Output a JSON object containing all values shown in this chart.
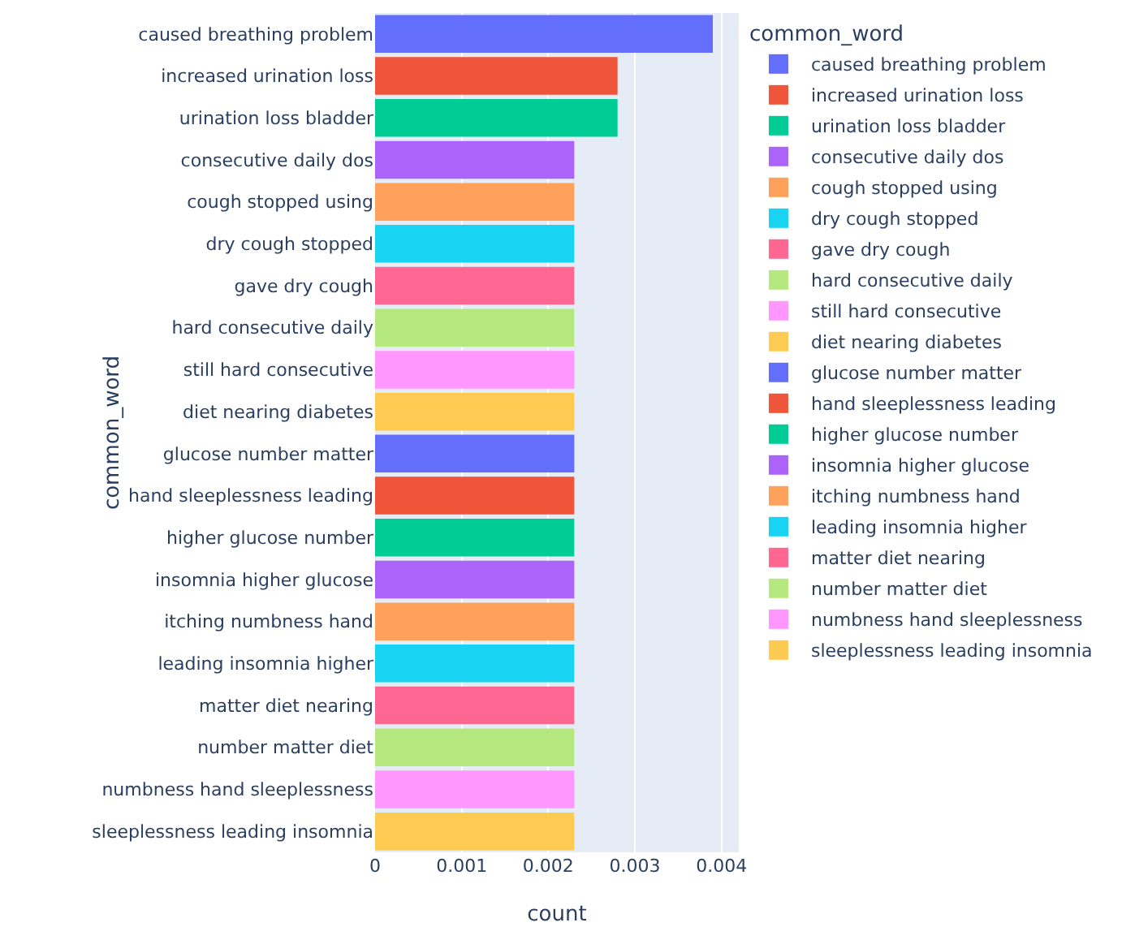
{
  "chart_data": {
    "type": "bar",
    "orientation": "horizontal",
    "xlabel": "count",
    "ylabel": "common_word",
    "legend_title": "common_word",
    "legend": "right",
    "grid": "x",
    "categories": [
      "caused breathing problem",
      "increased urination loss",
      "urination loss bladder",
      "consecutive daily dos",
      "cough stopped using",
      "dry cough stopped",
      "gave dry cough",
      "hard consecutive daily",
      "still hard consecutive",
      "diet nearing diabetes",
      "glucose number matter",
      "hand sleeplessness leading",
      "higher glucose number",
      "insomnia higher glucose",
      "itching numbness hand",
      "leading insomnia higher",
      "matter diet nearing",
      "number matter diet",
      "numbness hand sleeplessness",
      "sleeplessness leading insomnia"
    ],
    "xlim": [
      0,
      0.0042
    ],
    "xticks": [
      0,
      0.001,
      0.002,
      0.003,
      0.004
    ],
    "series": [
      {
        "name": "caused breathing problem",
        "color": "#636efa",
        "values": [
          0.0039,
          null,
          null,
          null,
          null,
          null,
          null,
          null,
          null,
          null,
          null,
          null,
          null,
          null,
          null,
          null,
          null,
          null,
          null,
          null
        ]
      },
      {
        "name": "increased urination loss",
        "color": "#ef553b",
        "values": [
          null,
          0.0028,
          null,
          null,
          null,
          null,
          null,
          null,
          null,
          null,
          null,
          null,
          null,
          null,
          null,
          null,
          null,
          null,
          null,
          null
        ]
      },
      {
        "name": "urination loss bladder",
        "color": "#00cc96",
        "values": [
          null,
          null,
          0.0028,
          null,
          null,
          null,
          null,
          null,
          null,
          null,
          null,
          null,
          null,
          null,
          null,
          null,
          null,
          null,
          null,
          null
        ]
      },
      {
        "name": "consecutive daily dos",
        "color": "#ab63fa",
        "values": [
          null,
          null,
          null,
          0.0023,
          null,
          null,
          null,
          null,
          null,
          null,
          null,
          null,
          null,
          null,
          null,
          null,
          null,
          null,
          null,
          null
        ]
      },
      {
        "name": "cough stopped using",
        "color": "#ffa15a",
        "values": [
          null,
          null,
          null,
          null,
          0.0023,
          null,
          null,
          null,
          null,
          null,
          null,
          null,
          null,
          null,
          null,
          null,
          null,
          null,
          null,
          null
        ]
      },
      {
        "name": "dry cough stopped",
        "color": "#19d3f3",
        "values": [
          null,
          null,
          null,
          null,
          null,
          0.0023,
          null,
          null,
          null,
          null,
          null,
          null,
          null,
          null,
          null,
          null,
          null,
          null,
          null,
          null
        ]
      },
      {
        "name": "gave dry cough",
        "color": "#ff6692",
        "values": [
          null,
          null,
          null,
          null,
          null,
          null,
          0.0023,
          null,
          null,
          null,
          null,
          null,
          null,
          null,
          null,
          null,
          null,
          null,
          null,
          null
        ]
      },
      {
        "name": "hard consecutive daily",
        "color": "#b6e880",
        "values": [
          null,
          null,
          null,
          null,
          null,
          null,
          null,
          0.0023,
          null,
          null,
          null,
          null,
          null,
          null,
          null,
          null,
          null,
          null,
          null,
          null
        ]
      },
      {
        "name": "still hard consecutive",
        "color": "#ff97ff",
        "values": [
          null,
          null,
          null,
          null,
          null,
          null,
          null,
          null,
          0.0023,
          null,
          null,
          null,
          null,
          null,
          null,
          null,
          null,
          null,
          null,
          null
        ]
      },
      {
        "name": "diet nearing diabetes",
        "color": "#fecb52",
        "values": [
          null,
          null,
          null,
          null,
          null,
          null,
          null,
          null,
          null,
          0.0023,
          null,
          null,
          null,
          null,
          null,
          null,
          null,
          null,
          null,
          null
        ]
      },
      {
        "name": "glucose number matter",
        "color": "#636efa",
        "values": [
          null,
          null,
          null,
          null,
          null,
          null,
          null,
          null,
          null,
          null,
          0.0023,
          null,
          null,
          null,
          null,
          null,
          null,
          null,
          null,
          null
        ]
      },
      {
        "name": "hand sleeplessness leading",
        "color": "#ef553b",
        "values": [
          null,
          null,
          null,
          null,
          null,
          null,
          null,
          null,
          null,
          null,
          null,
          0.0023,
          null,
          null,
          null,
          null,
          null,
          null,
          null,
          null
        ]
      },
      {
        "name": "higher glucose number",
        "color": "#00cc96",
        "values": [
          null,
          null,
          null,
          null,
          null,
          null,
          null,
          null,
          null,
          null,
          null,
          null,
          0.0023,
          null,
          null,
          null,
          null,
          null,
          null,
          null
        ]
      },
      {
        "name": "insomnia higher glucose",
        "color": "#ab63fa",
        "values": [
          null,
          null,
          null,
          null,
          null,
          null,
          null,
          null,
          null,
          null,
          null,
          null,
          null,
          0.0023,
          null,
          null,
          null,
          null,
          null,
          null
        ]
      },
      {
        "name": "itching numbness hand",
        "color": "#ffa15a",
        "values": [
          null,
          null,
          null,
          null,
          null,
          null,
          null,
          null,
          null,
          null,
          null,
          null,
          null,
          null,
          0.0023,
          null,
          null,
          null,
          null,
          null
        ]
      },
      {
        "name": "leading insomnia higher",
        "color": "#19d3f3",
        "values": [
          null,
          null,
          null,
          null,
          null,
          null,
          null,
          null,
          null,
          null,
          null,
          null,
          null,
          null,
          null,
          0.0023,
          null,
          null,
          null,
          null
        ]
      },
      {
        "name": "matter diet nearing",
        "color": "#ff6692",
        "values": [
          null,
          null,
          null,
          null,
          null,
          null,
          null,
          null,
          null,
          null,
          null,
          null,
          null,
          null,
          null,
          null,
          0.0023,
          null,
          null,
          null
        ]
      },
      {
        "name": "number matter diet",
        "color": "#b6e880",
        "values": [
          null,
          null,
          null,
          null,
          null,
          null,
          null,
          null,
          null,
          null,
          null,
          null,
          null,
          null,
          null,
          null,
          null,
          0.0023,
          null,
          null
        ]
      },
      {
        "name": "numbness hand sleeplessness",
        "color": "#ff97ff",
        "values": [
          null,
          null,
          null,
          null,
          null,
          null,
          null,
          null,
          null,
          null,
          null,
          null,
          null,
          null,
          null,
          null,
          null,
          null,
          0.0023,
          null
        ]
      },
      {
        "name": "sleeplessness leading insomnia",
        "color": "#fecb52",
        "values": [
          null,
          null,
          null,
          null,
          null,
          null,
          null,
          null,
          null,
          null,
          null,
          null,
          null,
          null,
          null,
          null,
          null,
          null,
          null,
          0.0023
        ]
      }
    ]
  }
}
